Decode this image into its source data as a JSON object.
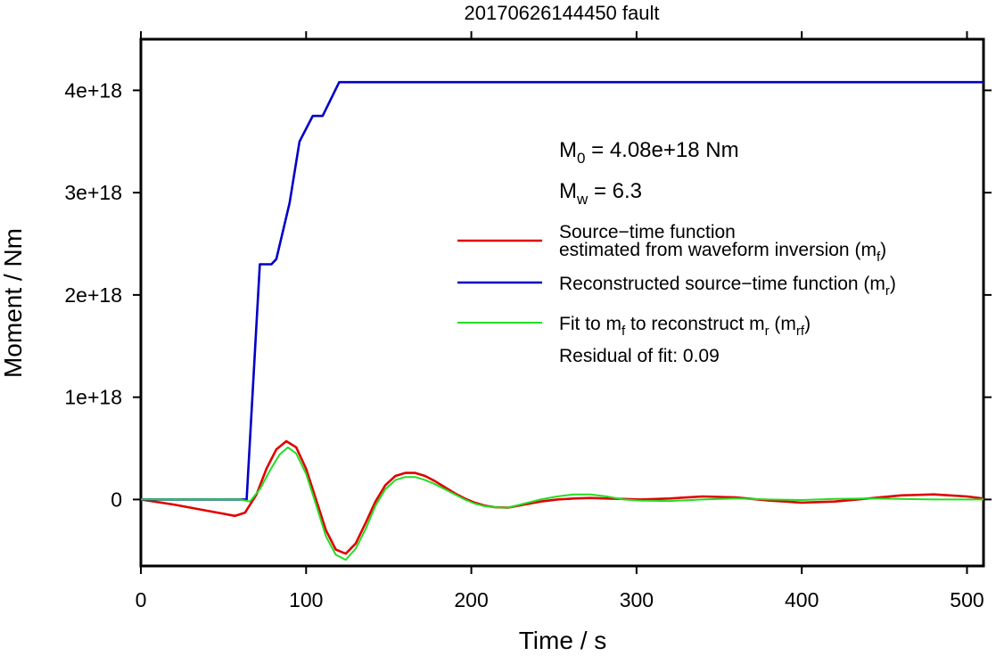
{
  "chart_data": {
    "type": "line",
    "title": "20170626144450 fault",
    "xlabel": "Time / s",
    "ylabel": "Moment / Nm",
    "xlim": [
      0,
      510
    ],
    "ylim": [
      -6.5e+17,
      4.5e+18
    ],
    "xticks": [
      0,
      100,
      200,
      300,
      400,
      500
    ],
    "xtick_labels": [
      "0",
      "100",
      "200",
      "300",
      "400",
      "500"
    ],
    "yticks": [
      0,
      1e+18,
      2e+18,
      3e+18,
      4e+18
    ],
    "ytick_labels": [
      "0",
      "1e+18",
      "2e+18",
      "3e+18",
      "4e+18"
    ],
    "grid": false,
    "legend_position": "right",
    "annotations": {
      "m0": {
        "label": "M",
        "sub": "0",
        "text": " = 4.08e+18 Nm"
      },
      "mw": {
        "label": "M",
        "sub": "w",
        "text": " = 6.3"
      },
      "residual": "Residual of fit: 0.09"
    },
    "series": [
      {
        "key": "mf",
        "color": "#e00000",
        "legend": [
          [
            {
              "t": "Source−time function"
            }
          ],
          [
            {
              "t": "estimated from waveform inversion (m"
            },
            {
              "t": "f",
              "sub": true
            },
            {
              "t": ")"
            }
          ]
        ],
        "x": [
          0,
          20,
          40,
          57,
          63,
          70,
          76,
          82,
          88,
          94,
          100,
          106,
          112,
          118,
          124,
          130,
          136,
          142,
          148,
          154,
          160,
          166,
          172,
          178,
          184,
          190,
          196,
          202,
          208,
          214,
          222,
          232,
          242,
          252,
          262,
          272,
          282,
          292,
          302,
          320,
          340,
          360,
          380,
          400,
          420,
          440,
          460,
          480,
          500,
          510
        ],
        "y": [
          0,
          -5e+16,
          -1.1e+17,
          -1.6e+17,
          -1.3e+17,
          5e+16,
          3e+17,
          4.9e+17,
          5.7e+17,
          5.1e+17,
          3e+17,
          0,
          -3e+17,
          -4.9e+17,
          -5.3e+17,
          -4.3e+17,
          -2.3e+17,
          -2e+16,
          1.4e+17,
          2.3e+17,
          2.6e+17,
          2.6e+17,
          2.3e+17,
          1.8e+17,
          1.2e+17,
          6e+16,
          1e+16,
          -3e+16,
          -6e+16,
          -7.5e+16,
          -8e+16,
          -5e+16,
          -2e+16,
          0,
          1e+16,
          1.5e+16,
          1e+16,
          5000000000000000.0,
          0,
          1e+16,
          3e+16,
          2e+16,
          -1e+16,
          -3e+16,
          -2e+16,
          1e+16,
          4e+16,
          5e+16,
          3e+16,
          1e+16
        ]
      },
      {
        "key": "mr",
        "color": "#0000c8",
        "legend": [
          [
            {
              "t": "Reconstructed source−time function (m"
            },
            {
              "t": "r",
              "sub": true
            },
            {
              "t": ")"
            }
          ]
        ],
        "x": [
          0,
          64,
          72,
          79,
          82,
          90,
          96,
          104,
          110,
          120,
          510
        ],
        "y": [
          0,
          0,
          2.3e+18,
          2.3e+18,
          2.35e+18,
          2.9e+18,
          3.5e+18,
          3.75e+18,
          3.75e+18,
          4.08e+18,
          4.08e+18
        ]
      },
      {
        "key": "mrf",
        "color": "#22dd22",
        "legend": [
          [
            {
              "t": "Fit to m"
            },
            {
              "t": "f",
              "sub": true
            },
            {
              "t": " to reconstruct m"
            },
            {
              "t": "r",
              "sub": true
            },
            {
              "t": " (m"
            },
            {
              "t": "rf",
              "sub": true
            },
            {
              "t": ")"
            }
          ]
        ],
        "x": [
          0,
          50,
          60,
          66,
          72,
          78,
          84,
          89,
          94,
          100,
          106,
          112,
          118,
          124,
          130,
          136,
          142,
          148,
          154,
          160,
          166,
          172,
          178,
          184,
          190,
          196,
          202,
          208,
          214,
          222,
          232,
          242,
          252,
          262,
          272,
          282,
          292,
          302,
          320,
          340,
          360,
          380,
          400,
          420,
          440,
          460,
          480,
          500,
          510
        ],
        "y": [
          0,
          0,
          0,
          -2e+16,
          1e+17,
          2.8e+17,
          4.4e+17,
          5.1e+17,
          4.5e+17,
          2.5e+17,
          -5e+16,
          -3.6e+17,
          -5.4e+17,
          -5.9e+17,
          -4.8e+17,
          -2.9e+17,
          -6e+16,
          1e+17,
          1.9e+17,
          2.2e+17,
          2.2e+17,
          1.9e+17,
          1.5e+17,
          1e+17,
          5e+16,
          0,
          -4e+16,
          -6.5e+16,
          -7.5e+16,
          -8e+16,
          -4e+16,
          0,
          3e+16,
          5e+16,
          5e+16,
          3e+16,
          0,
          -1e+16,
          -1.5e+16,
          0,
          1e+16,
          0,
          -5000000000000000.0,
          5000000000000000.0,
          1e+16,
          5000000000000000.0,
          0,
          0,
          0
        ]
      }
    ]
  }
}
